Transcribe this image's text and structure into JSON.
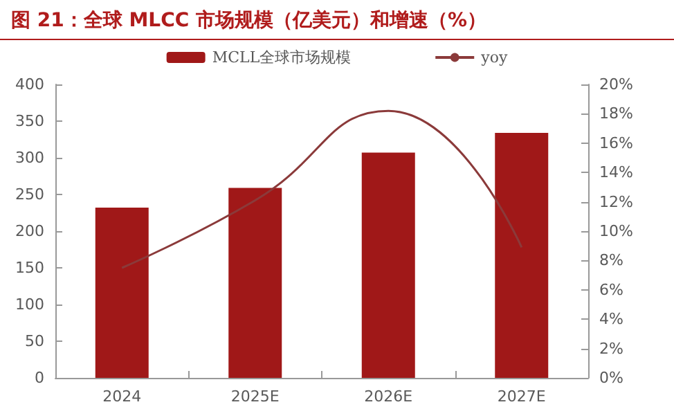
{
  "chart_data": {
    "type": "bar",
    "title": "图 21：全球 MLCC 市场规模（亿美元）和增速（%）",
    "categories": [
      "2024",
      "2025E",
      "2026E",
      "2027E"
    ],
    "series": [
      {
        "name": "MCLL全球市场规模",
        "color": "#a01818",
        "values": [
          232,
          259,
          307,
          334
        ]
      },
      {
        "name": "yoy",
        "type": "line",
        "axis": "y2",
        "color": "#8b3a3a",
        "values": [
          7.5,
          12.1,
          18.2,
          8.9
        ]
      }
    ],
    "ylim": [
      0,
      400
    ],
    "yticks": [
      0,
      50,
      100,
      150,
      200,
      250,
      300,
      350,
      400
    ],
    "y2lim": [
      0,
      20
    ],
    "y2ticks": [
      {
        "value": 0,
        "label": "0%"
      },
      {
        "value": 2,
        "label": "2%"
      },
      {
        "value": 4,
        "label": "4%"
      },
      {
        "value": 6,
        "label": "6%"
      },
      {
        "value": 8,
        "label": "8%"
      },
      {
        "value": 10,
        "label": "10%"
      },
      {
        "value": 12,
        "label": "12%"
      },
      {
        "value": 14,
        "label": "14%"
      },
      {
        "value": 16,
        "label": "16%"
      },
      {
        "value": 18,
        "label": "18%"
      },
      {
        "value": 20,
        "label": "20%"
      }
    ],
    "legend": "top",
    "grid": false,
    "marker": "none",
    "line_style": "solid"
  }
}
